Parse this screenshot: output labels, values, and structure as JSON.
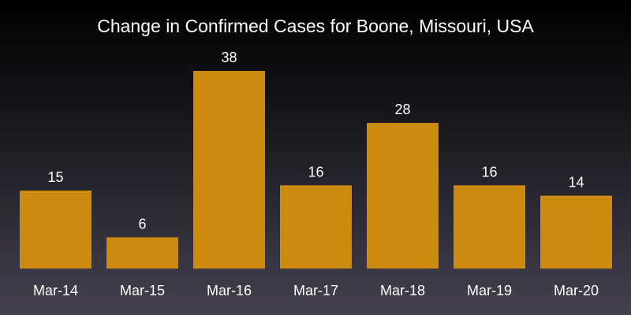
{
  "chart_data": {
    "type": "bar",
    "title": "Change in Confirmed Cases for Boone, Missouri, USA",
    "categories": [
      "Mar-14",
      "Mar-15",
      "Mar-16",
      "Mar-17",
      "Mar-18",
      "Mar-19",
      "Mar-20"
    ],
    "values": [
      15,
      6,
      38,
      16,
      28,
      16,
      14
    ],
    "xlabel": "",
    "ylabel": "",
    "ylim": [
      0,
      38
    ],
    "grid": false,
    "bar_color": "#cc8a0e",
    "text_color": "#ffffff"
  }
}
